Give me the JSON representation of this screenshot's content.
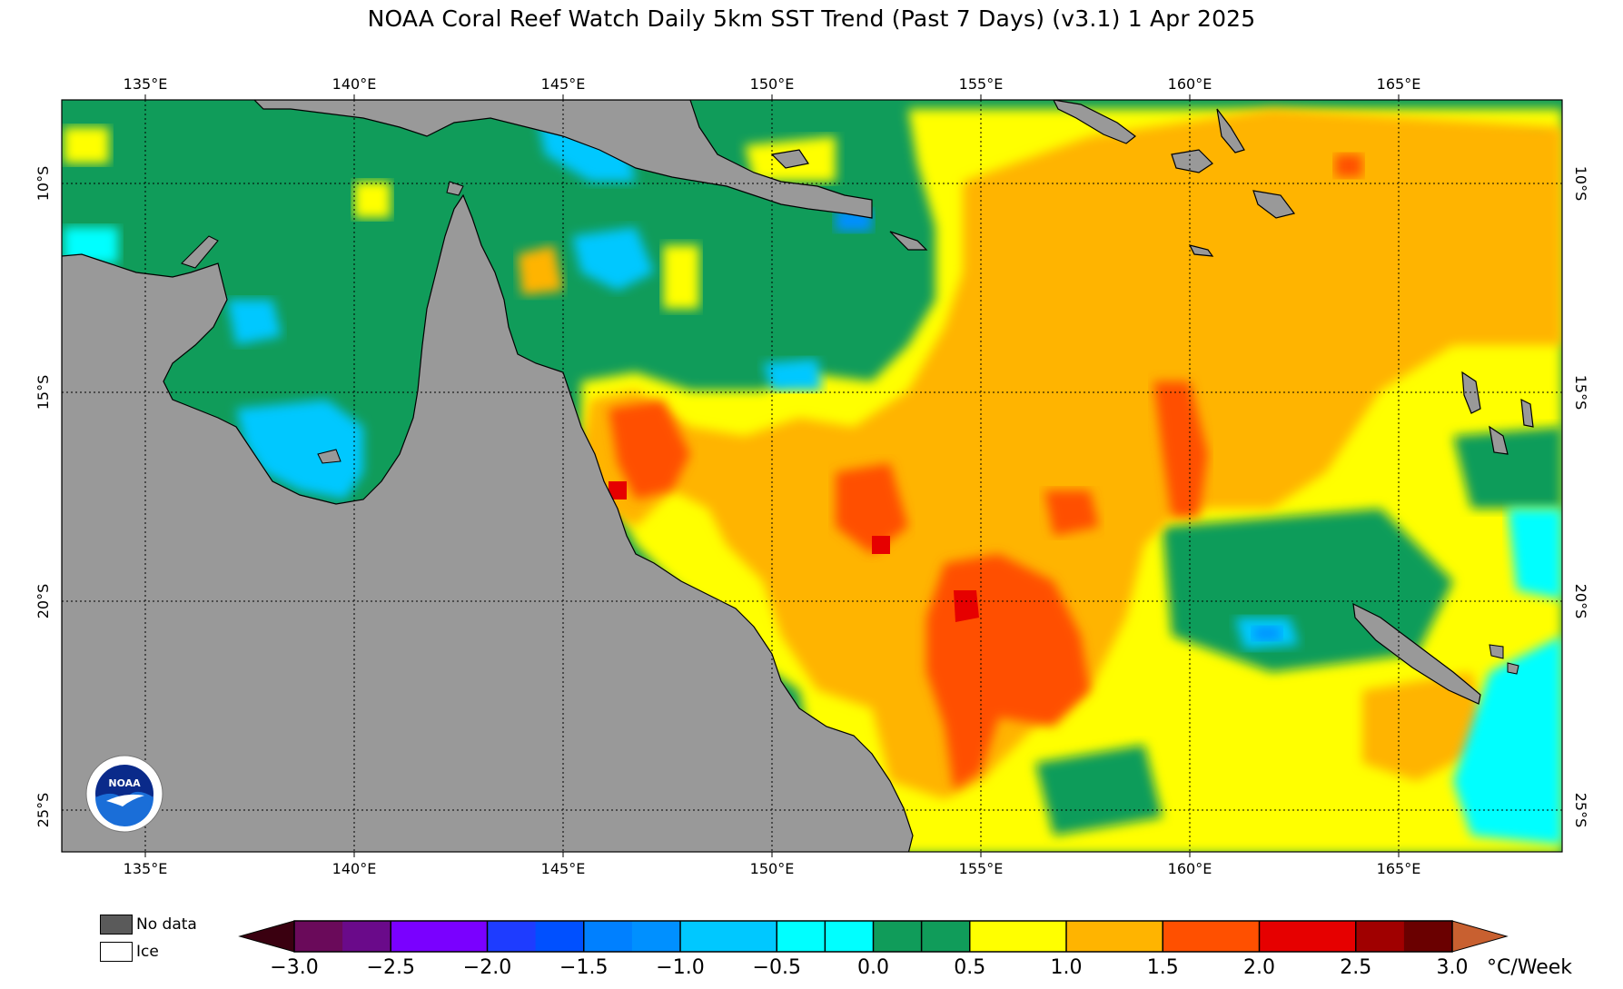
{
  "title": "NOAA Coral Reef Watch Daily 5km SST Trend (Past 7 Days)  (v3.1)   1 Apr 2025",
  "map": {
    "lon_ticks": [
      "135°E",
      "140°E",
      "145°E",
      "150°E",
      "155°E",
      "160°E",
      "165°E"
    ],
    "lat_ticks": [
      "10°S",
      "15°S",
      "20°S",
      "25°S"
    ],
    "land_color": "#999999",
    "gridline_style": "dotted"
  },
  "legend_keys": {
    "nodata": {
      "label": "No data",
      "color": "#5a5a5a"
    },
    "ice": {
      "label": "Ice",
      "color": "#ffffff"
    }
  },
  "colorbar": {
    "labels": [
      "−3.0",
      "−2.5",
      "−2.0",
      "−1.5",
      "−1.0",
      "−0.5",
      "0.0",
      "0.5",
      "1.0",
      "1.5",
      "2.0",
      "2.5",
      "3.0"
    ],
    "unit": "°C/Week",
    "colors": [
      "#5a0030",
      "#6a0a8a",
      "#7a00ff",
      "#1e3cff",
      "#0050ff",
      "#0090ff",
      "#00c8ff",
      "#00ffff",
      "#109c5a",
      "#109c5a",
      "#ffff00",
      "#ffb400",
      "#ff5000",
      "#e60000",
      "#a00000",
      "#6a0000",
      "#d0642a"
    ],
    "under_color": "#3a0010",
    "over_color": "#c86030"
  },
  "logo": {
    "text": "NOAA",
    "icon": "noaa-logo-icon"
  }
}
